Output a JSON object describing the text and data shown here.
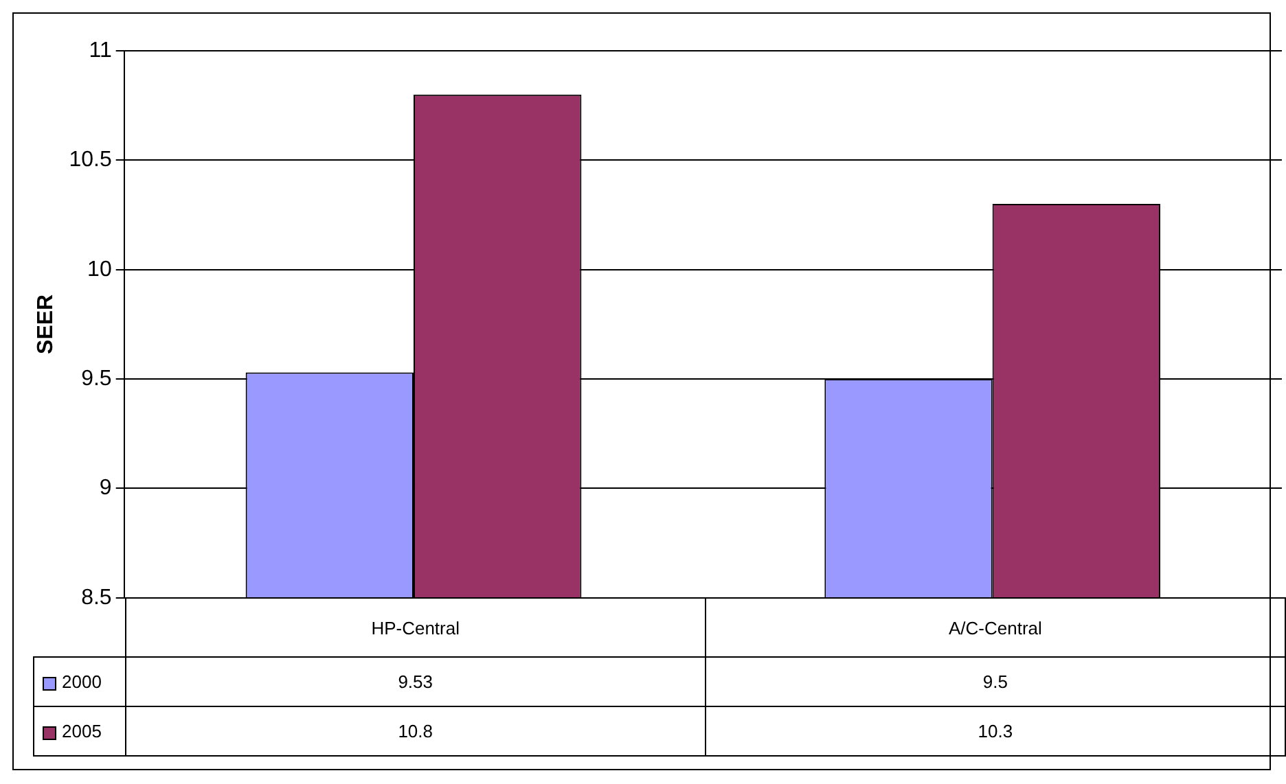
{
  "chart_data": {
    "type": "bar",
    "ylabel": "SEER",
    "categories": [
      "HP-Central",
      "A/C-Central"
    ],
    "series": [
      {
        "name": "2000",
        "color": "#9999ff",
        "values": [
          9.53,
          9.5
        ]
      },
      {
        "name": "2005",
        "color": "#993366",
        "values": [
          10.8,
          10.3
        ]
      }
    ],
    "ylim": [
      8.5,
      11
    ],
    "yticks": [
      8.5,
      9,
      9.5,
      10,
      10.5,
      11
    ],
    "grid": "y",
    "legend": "bottom",
    "data_labels": true
  }
}
